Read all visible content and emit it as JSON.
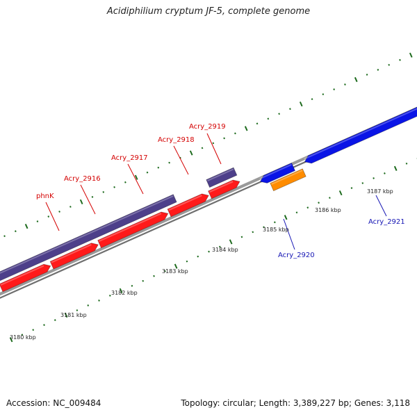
{
  "title": "Acidiphilium cryptum JF-5, complete genome",
  "footer": {
    "accession": "Accession: NC_009484",
    "summary": "Topology: circular; Length: 3,389,227 bp; Genes: 3,118"
  },
  "scale": {
    "labels": [
      "3180 kbp",
      "3181 kbp",
      "3182 kbp",
      "3183 kbp",
      "3184 kbp",
      "3185 kbp",
      "3186 kbp",
      "3187 kbp"
    ]
  },
  "colors": {
    "backbone": "#8c8c8c",
    "cds_forward": "#ff1a1a",
    "cds_reverse": "#0a14e6",
    "gene_forward": "#4d3f8a",
    "gene_reverse": "#ff8c00",
    "tick": "#1e6b1e",
    "label_forward": "#d40000",
    "label_reverse": "#1414b4"
  },
  "genes": [
    {
      "name": "phnK",
      "strand": "forward"
    },
    {
      "name": "Acry_2916",
      "strand": "forward"
    },
    {
      "name": "Acry_2917",
      "strand": "forward"
    },
    {
      "name": "Acry_2918",
      "strand": "forward"
    },
    {
      "name": "Acry_2919",
      "strand": "forward"
    },
    {
      "name": "Acry_2920",
      "strand": "reverse"
    },
    {
      "name": "Acry_2921",
      "strand": "reverse"
    }
  ]
}
